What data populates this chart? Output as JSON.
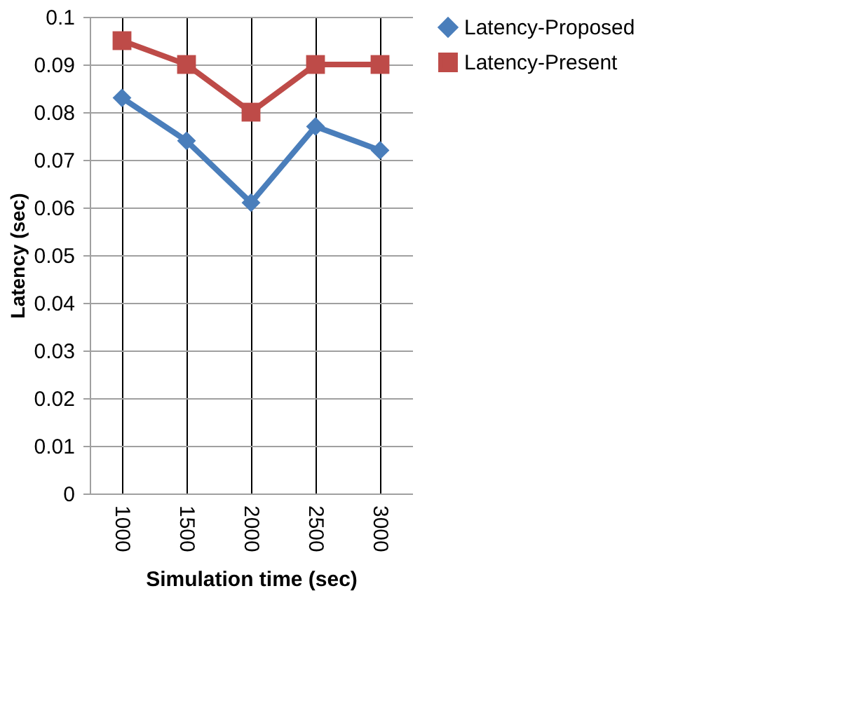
{
  "chart_data": {
    "type": "line",
    "xlabel": "Simulation time (sec)",
    "ylabel": "Latency (sec)",
    "categories": [
      "1000",
      "1500",
      "2000",
      "2500",
      "3000"
    ],
    "series": [
      {
        "name": "Latency-Proposed",
        "color": "#4a7ebb",
        "marker": "diamond",
        "values": [
          0.083,
          0.074,
          0.061,
          0.077,
          0.072
        ]
      },
      {
        "name": "Latency-Present",
        "color": "#be4b48",
        "marker": "square",
        "values": [
          0.095,
          0.09,
          0.08,
          0.09,
          0.09
        ]
      }
    ],
    "ylim": [
      0,
      0.1
    ],
    "yticks": [
      0,
      0.01,
      0.02,
      0.03,
      0.04,
      0.05,
      0.06,
      0.07,
      0.08,
      0.09,
      0.1
    ],
    "grid": true,
    "legend": "right",
    "line_style": "solid"
  }
}
